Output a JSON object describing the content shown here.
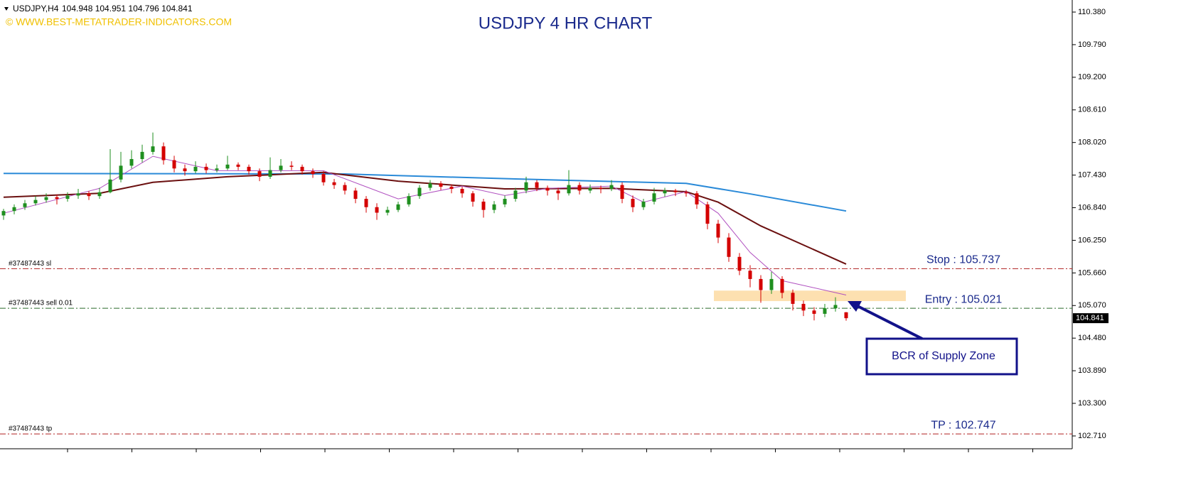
{
  "header": {
    "symbol": "USDJPY,H4",
    "ohlc": "104.948 104.951 104.796 104.841",
    "watermark": "© WWW.BEST-METATRADER-INDICATORS.COM",
    "title": "USDJPY 4 HR CHART"
  },
  "price_axis": {
    "ylim": [
      102.504,
      110.534
    ],
    "ticks": [
      {
        "value": 110.38,
        "label": "110.380"
      },
      {
        "value": 109.79,
        "label": "109.790"
      },
      {
        "value": 109.2,
        "label": "109.200"
      },
      {
        "value": 108.61,
        "label": "108.610"
      },
      {
        "value": 108.02,
        "label": "108.020"
      },
      {
        "value": 107.43,
        "label": "107.430"
      },
      {
        "value": 106.84,
        "label": "106.840"
      },
      {
        "value": 106.25,
        "label": "106.250"
      },
      {
        "value": 105.66,
        "label": "105.660"
      },
      {
        "value": 105.07,
        "label": "105.070"
      },
      {
        "value": 104.48,
        "label": "104.480"
      },
      {
        "value": 103.89,
        "label": "103.890"
      },
      {
        "value": 103.3,
        "label": "103.300"
      },
      {
        "value": 102.71,
        "label": "102.710"
      }
    ],
    "current_price": 104.841
  },
  "candles": {
    "bull_color": "#1f8f1f",
    "bear_color": "#d40000",
    "ohlc": [
      [
        106.7,
        106.82,
        106.62,
        106.78
      ],
      [
        106.78,
        106.9,
        106.72,
        106.85
      ],
      [
        106.85,
        106.98,
        106.8,
        106.92
      ],
      [
        106.92,
        107.05,
        106.88,
        106.98
      ],
      [
        106.98,
        107.1,
        106.93,
        107.03
      ],
      [
        107.03,
        107.08,
        106.9,
        107.0
      ],
      [
        107.0,
        107.12,
        106.95,
        107.06
      ],
      [
        107.06,
        107.18,
        107.0,
        107.1
      ],
      [
        107.1,
        107.14,
        106.98,
        107.05
      ],
      [
        107.05,
        107.2,
        107.0,
        107.12
      ],
      [
        107.12,
        107.9,
        107.1,
        107.35
      ],
      [
        107.35,
        107.85,
        107.3,
        107.6
      ],
      [
        107.6,
        107.88,
        107.55,
        107.72
      ],
      [
        107.72,
        107.98,
        107.66,
        107.85
      ],
      [
        107.85,
        108.2,
        107.8,
        107.95
      ],
      [
        107.95,
        108.02,
        107.62,
        107.7
      ],
      [
        107.7,
        107.78,
        107.48,
        107.55
      ],
      [
        107.55,
        107.62,
        107.42,
        107.5
      ],
      [
        107.5,
        107.68,
        107.46,
        107.58
      ],
      [
        107.58,
        107.64,
        107.46,
        107.52
      ],
      [
        107.52,
        107.62,
        107.48,
        107.55
      ],
      [
        107.55,
        107.78,
        107.52,
        107.62
      ],
      [
        107.62,
        107.66,
        107.52,
        107.58
      ],
      [
        107.58,
        107.62,
        107.44,
        107.5
      ],
      [
        107.5,
        107.55,
        107.32,
        107.4
      ],
      [
        107.4,
        107.75,
        107.36,
        107.52
      ],
      [
        107.52,
        107.72,
        107.48,
        107.6
      ],
      [
        107.6,
        107.68,
        107.52,
        107.58
      ],
      [
        107.58,
        107.62,
        107.44,
        107.5
      ],
      [
        107.5,
        107.55,
        107.38,
        107.45
      ],
      [
        107.45,
        107.5,
        107.24,
        107.3
      ],
      [
        107.3,
        107.36,
        107.18,
        107.25
      ],
      [
        107.25,
        107.3,
        107.08,
        107.15
      ],
      [
        107.15,
        107.2,
        106.92,
        107.0
      ],
      [
        107.0,
        107.05,
        106.75,
        106.85
      ],
      [
        106.85,
        106.92,
        106.62,
        106.75
      ],
      [
        106.75,
        106.86,
        106.7,
        106.8
      ],
      [
        106.8,
        106.95,
        106.76,
        106.9
      ],
      [
        106.9,
        107.1,
        106.86,
        107.05
      ],
      [
        107.05,
        107.25,
        107.0,
        107.2
      ],
      [
        107.2,
        107.34,
        107.15,
        107.28
      ],
      [
        107.28,
        107.32,
        107.16,
        107.22
      ],
      [
        107.22,
        107.26,
        107.1,
        107.18
      ],
      [
        107.18,
        107.22,
        107.02,
        107.1
      ],
      [
        107.1,
        107.14,
        106.86,
        106.95
      ],
      [
        106.95,
        107.0,
        106.66,
        106.8
      ],
      [
        106.8,
        106.96,
        106.74,
        106.9
      ],
      [
        106.9,
        107.06,
        106.85,
        107.0
      ],
      [
        107.0,
        107.2,
        106.95,
        107.15
      ],
      [
        107.15,
        107.4,
        107.1,
        107.3
      ],
      [
        107.3,
        107.34,
        107.14,
        107.2
      ],
      [
        107.2,
        107.24,
        107.06,
        107.15
      ],
      [
        107.15,
        107.2,
        106.98,
        107.1
      ],
      [
        107.1,
        107.52,
        107.06,
        107.25
      ],
      [
        107.25,
        107.3,
        107.08,
        107.15
      ],
      [
        107.15,
        107.26,
        107.1,
        107.2
      ],
      [
        107.2,
        107.24,
        107.1,
        107.18
      ],
      [
        107.18,
        107.34,
        107.14,
        107.25
      ],
      [
        107.25,
        107.3,
        106.92,
        107.0
      ],
      [
        107.0,
        107.06,
        106.76,
        106.85
      ],
      [
        106.85,
        107.0,
        106.8,
        106.95
      ],
      [
        106.95,
        107.2,
        106.9,
        107.1
      ],
      [
        107.1,
        107.2,
        107.04,
        107.15
      ],
      [
        107.15,
        107.18,
        107.05,
        107.12
      ],
      [
        107.12,
        107.16,
        107.04,
        107.1
      ],
      [
        107.1,
        107.14,
        106.82,
        106.9
      ],
      [
        106.9,
        106.95,
        106.45,
        106.55
      ],
      [
        106.55,
        106.62,
        106.2,
        106.3
      ],
      [
        106.3,
        106.38,
        105.86,
        105.95
      ],
      [
        105.95,
        106.02,
        105.62,
        105.7
      ],
      [
        105.7,
        105.8,
        105.4,
        105.55
      ],
      [
        105.55,
        105.62,
        105.12,
        105.35
      ],
      [
        105.35,
        105.68,
        105.28,
        105.55
      ],
      [
        105.55,
        105.6,
        105.2,
        105.3
      ],
      [
        105.3,
        105.36,
        104.98,
        105.1
      ],
      [
        105.1,
        105.16,
        104.88,
        104.98
      ],
      [
        104.98,
        105.04,
        104.8,
        104.92
      ],
      [
        104.92,
        105.1,
        104.86,
        105.02
      ],
      [
        105.02,
        105.22,
        104.96,
        105.08
      ],
      [
        104.948,
        104.951,
        104.796,
        104.841
      ]
    ]
  },
  "moving_averages": [
    {
      "color": "#2a8ad8",
      "width": 2,
      "index": [
        0,
        32,
        48,
        64,
        70,
        79
      ],
      "values": [
        107.46,
        107.45,
        107.36,
        107.28,
        107.09,
        106.78
      ]
    },
    {
      "color": "#6b1010",
      "width": 2,
      "index": [
        0,
        9,
        14,
        21,
        30,
        37,
        47,
        57,
        64,
        67,
        71,
        79
      ],
      "values": [
        107.03,
        107.1,
        107.3,
        107.4,
        107.48,
        107.32,
        107.18,
        107.19,
        107.13,
        106.94,
        106.51,
        105.82
      ]
    },
    {
      "color": "#b050c0",
      "width": 1,
      "index": [
        0,
        9,
        14,
        20,
        30,
        37,
        43,
        47,
        51,
        57,
        60,
        64,
        67,
        70,
        73,
        79
      ],
      "values": [
        106.74,
        107.19,
        107.77,
        107.51,
        107.51,
        107.0,
        107.23,
        107.06,
        107.19,
        107.23,
        106.94,
        107.13,
        106.74,
        106.03,
        105.52,
        105.26
      ]
    }
  ],
  "order_lines": [
    {
      "label": "#37487443 sl",
      "price": 105.737,
      "note": "Stop : 105.737",
      "color": "#b02020"
    },
    {
      "label": "#37487443 sell 0.01",
      "price": 105.021,
      "note": "Entry : 105.021",
      "color": "#2a6a2a"
    },
    {
      "label": "#37487443 tp",
      "price": 102.747,
      "note": "TP : 102.747",
      "color": "#b02020"
    }
  ],
  "supply_zone": {
    "top": 105.34,
    "bottom": 105.15,
    "color": "#fde0b0"
  },
  "annotation": {
    "text": "BCR of Supply Zone"
  }
}
